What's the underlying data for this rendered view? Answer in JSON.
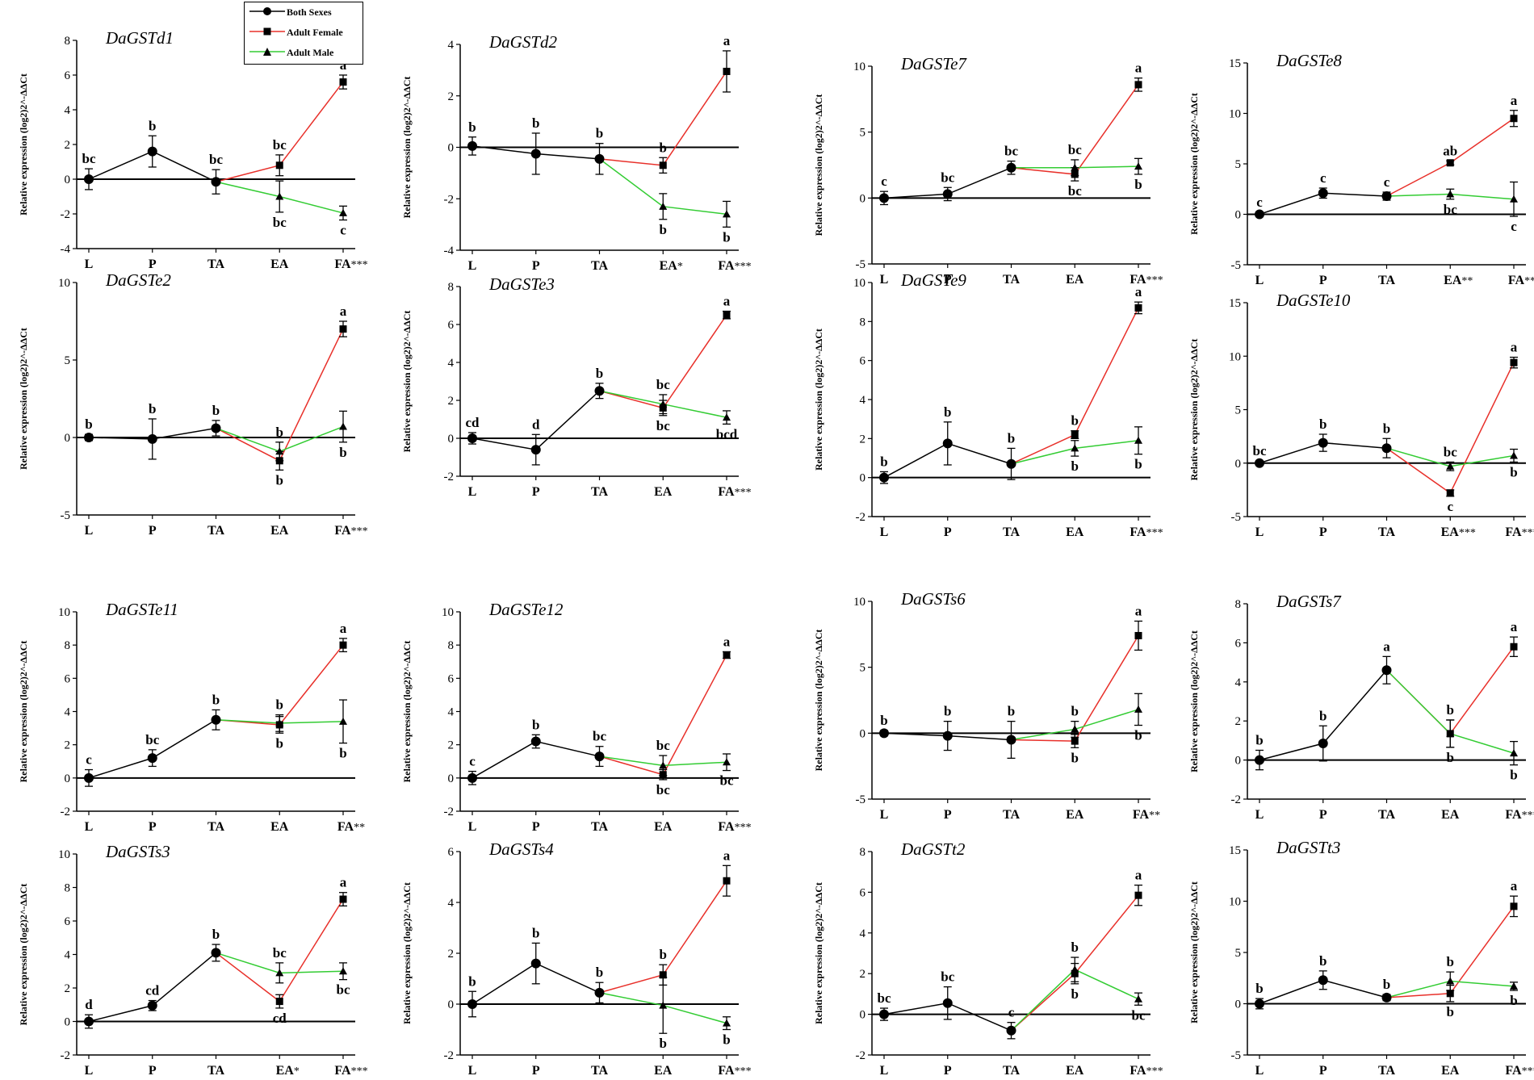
{
  "legend": {
    "items": [
      {
        "label": "Both Sexes",
        "color": "#000000",
        "marker": "circle"
      },
      {
        "label": "Adult Female",
        "color": "#e8302a",
        "marker": "square"
      },
      {
        "label": "Adult Male",
        "color": "#33cc33",
        "marker": "triangle"
      }
    ]
  },
  "colors": {
    "both": "#000000",
    "female": "#e8302a",
    "male": "#33cc33"
  },
  "chart_data": [
    {
      "type": "line",
      "title": "DaGSTd1",
      "ylabel": "Relative expression (log2)2^-ΔΔCt",
      "categories": [
        "L",
        "P",
        "TA",
        "EA",
        "FA"
      ],
      "marks": [
        "",
        "",
        "",
        "",
        "***"
      ],
      "ylim": [
        -4,
        8
      ],
      "yticks": [
        -4,
        -2,
        0,
        2,
        4,
        6,
        8
      ],
      "both": [
        0,
        1.6,
        -0.15
      ],
      "both_err": [
        0.6,
        0.9,
        0.7
      ],
      "female": [
        0.8,
        5.6
      ],
      "female_err": [
        0.6,
        0.4
      ],
      "male": [
        -1.0,
        -1.95
      ],
      "male_err": [
        0.9,
        0.4
      ],
      "letters": {
        "both": [
          "bc",
          "b",
          "bc"
        ],
        "female": [
          "bc",
          "a"
        ],
        "male": [
          "bc",
          "c"
        ]
      }
    },
    {
      "type": "line",
      "title": "DaGSTd2",
      "ylabel": "Relative expression (log2)2^-ΔΔCt",
      "categories": [
        "L",
        "P",
        "TA",
        "EA",
        "FA"
      ],
      "marks": [
        "",
        "",
        "",
        "*",
        "***"
      ],
      "ylim": [
        -4,
        4
      ],
      "yticks": [
        -4,
        -2,
        0,
        2,
        4
      ],
      "both": [
        0.05,
        -0.25,
        -0.45
      ],
      "both_err": [
        0.35,
        0.8,
        0.6
      ],
      "female": [
        -0.7,
        2.95
      ],
      "female_err": [
        0.3,
        0.8
      ],
      "male": [
        -2.3,
        -2.6
      ],
      "male_err": [
        0.5,
        0.5
      ],
      "letters": {
        "both": [
          "b",
          "b",
          "b"
        ],
        "female": [
          "b",
          "a"
        ],
        "male": [
          "b",
          "b"
        ]
      }
    },
    {
      "type": "line",
      "title": "DaGSTe7",
      "ylabel": "Relative expression (log2)2^-ΔΔCt",
      "categories": [
        "L",
        "P",
        "TA",
        "EA",
        "FA"
      ],
      "marks": [
        "",
        "",
        "",
        "",
        "***"
      ],
      "ylim": [
        -5,
        10
      ],
      "yticks": [
        -5,
        0,
        5,
        10
      ],
      "both": [
        0,
        0.3,
        2.3
      ],
      "both_err": [
        0.5,
        0.5,
        0.5
      ],
      "female": [
        1.8,
        8.6
      ],
      "female_err": [
        0.5,
        0.5
      ],
      "male": [
        2.3,
        2.4
      ],
      "male_err": [
        0.6,
        0.6
      ],
      "letters": {
        "both": [
          "c",
          "bc",
          "bc"
        ],
        "female": [
          "bc",
          "a"
        ],
        "male": [
          "bc",
          "b"
        ]
      }
    },
    {
      "type": "line",
      "title": "DaGSTe8",
      "ylabel": "Relative expression (log2)2^-ΔΔCt",
      "categories": [
        "L",
        "P",
        "TA",
        "EA",
        "FA"
      ],
      "marks": [
        "",
        "",
        "",
        "**",
        "**"
      ],
      "ylim": [
        -5,
        15
      ],
      "yticks": [
        -5,
        0,
        5,
        10,
        15
      ],
      "both": [
        0,
        2.1,
        1.8
      ],
      "both_err": [
        0.2,
        0.5,
        0.4
      ],
      "female": [
        5.1,
        9.5
      ],
      "female_err": [
        0.2,
        0.8
      ],
      "male": [
        2.0,
        1.5
      ],
      "male_err": [
        0.5,
        1.7
      ],
      "letters": {
        "both": [
          "c",
          "c",
          "c"
        ],
        "female": [
          "ab",
          "a"
        ],
        "male": [
          "bc",
          "c"
        ]
      }
    },
    {
      "type": "line",
      "title": "DaGSTe2",
      "ylabel": "Relative expression (log2)2^-ΔΔCt",
      "categories": [
        "L",
        "P",
        "TA",
        "EA",
        "FA"
      ],
      "marks": [
        "",
        "",
        "",
        "",
        "***"
      ],
      "ylim": [
        -5,
        10
      ],
      "yticks": [
        -5,
        0,
        5,
        10
      ],
      "both": [
        0,
        -0.1,
        0.6
      ],
      "both_err": [
        0.2,
        1.3,
        0.5
      ],
      "female": [
        -1.5,
        7.0
      ],
      "female_err": [
        0.6,
        0.5
      ],
      "male": [
        -0.9,
        0.7
      ],
      "male_err": [
        0.6,
        1.0
      ],
      "letters": {
        "both": [
          "b",
          "b",
          "b"
        ],
        "female": [
          "b",
          "a"
        ],
        "male": [
          "b",
          "b"
        ]
      }
    },
    {
      "type": "line",
      "title": "DaGSTe3",
      "ylabel": "Relative expression (log2)2^-ΔΔCt",
      "categories": [
        "L",
        "P",
        "TA",
        "EA",
        "FA"
      ],
      "marks": [
        "",
        "",
        "",
        "",
        "***"
      ],
      "ylim": [
        -2,
        8
      ],
      "yticks": [
        -2,
        0,
        2,
        4,
        6,
        8
      ],
      "both": [
        0,
        -0.6,
        2.5
      ],
      "both_err": [
        0.3,
        0.8,
        0.4
      ],
      "female": [
        1.6,
        6.5
      ],
      "female_err": [
        0.4,
        0.2
      ],
      "male": [
        1.8,
        1.1
      ],
      "male_err": [
        0.5,
        0.35
      ],
      "letters": {
        "both": [
          "cd",
          "d",
          "b"
        ],
        "female": [
          "bc",
          "a"
        ],
        "male": [
          "bc",
          "bcd"
        ]
      }
    },
    {
      "type": "line",
      "title": "DaGSTe9",
      "ylabel": "Relative expression (log2)2^-ΔΔCt",
      "categories": [
        "L",
        "P",
        "TA",
        "EA",
        "FA"
      ],
      "marks": [
        "",
        "",
        "",
        "",
        "***"
      ],
      "ylim": [
        -2,
        10
      ],
      "yticks": [
        -2,
        0,
        2,
        4,
        6,
        8,
        10
      ],
      "both": [
        0,
        1.75,
        0.7
      ],
      "both_err": [
        0.3,
        1.1,
        0.8
      ],
      "female": [
        2.2,
        8.7
      ],
      "female_err": [
        0.2,
        0.3
      ],
      "male": [
        1.5,
        1.9
      ],
      "male_err": [
        0.4,
        0.7
      ],
      "letters": {
        "both": [
          "b",
          "b",
          "b"
        ],
        "female": [
          "b",
          "a"
        ],
        "male": [
          "b",
          "b"
        ]
      }
    },
    {
      "type": "line",
      "title": "DaGSTe10",
      "ylabel": "Relative expression (log2)2^-ΔΔCt",
      "categories": [
        "L",
        "P",
        "TA",
        "EA",
        "FA"
      ],
      "marks": [
        "",
        "",
        "",
        "***",
        "***"
      ],
      "ylim": [
        -5,
        15
      ],
      "yticks": [
        -5,
        0,
        5,
        10,
        15
      ],
      "both": [
        0,
        1.9,
        1.4
      ],
      "both_err": [
        0.2,
        0.8,
        0.9
      ],
      "female": [
        -2.8,
        9.4
      ],
      "female_err": [
        0.3,
        0.5
      ],
      "male": [
        -0.3,
        0.7
      ],
      "male_err": [
        0.4,
        0.6
      ],
      "letters": {
        "both": [
          "bc",
          "b",
          "b"
        ],
        "female": [
          "c",
          "a"
        ],
        "male": [
          "bc",
          "b"
        ]
      }
    },
    {
      "type": "line",
      "title": "DaGSTe11",
      "ylabel": "Relative expression (log2)2^-ΔΔCt",
      "categories": [
        "L",
        "P",
        "TA",
        "EA",
        "FA"
      ],
      "marks": [
        "",
        "",
        "",
        "",
        "**"
      ],
      "ylim": [
        -2,
        10
      ],
      "yticks": [
        -2,
        0,
        2,
        4,
        6,
        8,
        10
      ],
      "both": [
        0,
        1.2,
        3.5
      ],
      "both_err": [
        0.5,
        0.5,
        0.6
      ],
      "female": [
        3.2,
        8.0
      ],
      "female_err": [
        0.5,
        0.4
      ],
      "male": [
        3.3,
        3.4
      ],
      "male_err": [
        0.5,
        1.3
      ],
      "letters": {
        "both": [
          "c",
          "bc",
          "b"
        ],
        "female": [
          "b",
          "a"
        ],
        "male": [
          "b",
          "b"
        ]
      }
    },
    {
      "type": "line",
      "title": "DaGSTe12",
      "ylabel": "Relative expression (log2)2^-ΔΔCt",
      "categories": [
        "L",
        "P",
        "TA",
        "EA",
        "FA"
      ],
      "marks": [
        "",
        "",
        "",
        "",
        "***"
      ],
      "ylim": [
        -2,
        10
      ],
      "yticks": [
        -2,
        0,
        2,
        4,
        6,
        8,
        10
      ],
      "both": [
        0,
        2.2,
        1.3
      ],
      "both_err": [
        0.4,
        0.4,
        0.6
      ],
      "female": [
        0.2,
        7.4
      ],
      "female_err": [
        0.3,
        0.2
      ],
      "male": [
        0.75,
        0.95
      ],
      "male_err": [
        0.6,
        0.5
      ],
      "letters": {
        "both": [
          "c",
          "b",
          "bc"
        ],
        "female": [
          "bc",
          "a"
        ],
        "male": [
          "bc",
          "bc"
        ]
      }
    },
    {
      "type": "line",
      "title": "DaGSTs6",
      "ylabel": "Relative expression (log2)2^-ΔΔCt",
      "categories": [
        "L",
        "P",
        "TA",
        "EA",
        "FA"
      ],
      "marks": [
        "",
        "",
        "",
        "",
        "**"
      ],
      "ylim": [
        -5,
        10
      ],
      "yticks": [
        -5,
        0,
        5,
        10
      ],
      "both": [
        0,
        -0.2,
        -0.5
      ],
      "both_err": [
        0.2,
        1.1,
        1.4
      ],
      "female": [
        -0.6,
        7.4
      ],
      "female_err": [
        0.5,
        1.1
      ],
      "male": [
        0.3,
        1.8
      ],
      "male_err": [
        0.6,
        1.2
      ],
      "letters": {
        "both": [
          "b",
          "b",
          "b"
        ],
        "female": [
          "b",
          "a"
        ],
        "male": [
          "b",
          "b"
        ]
      }
    },
    {
      "type": "line",
      "title": "DaGSTs7",
      "ylabel": "Relative expression (log2)2^-ΔΔCt",
      "categories": [
        "L",
        "P",
        "TA",
        "EA",
        "FA"
      ],
      "marks": [
        "",
        "",
        "",
        "",
        "***"
      ],
      "ylim": [
        -2,
        8
      ],
      "yticks": [
        -2,
        0,
        2,
        4,
        6,
        8
      ],
      "both": [
        0,
        0.85,
        4.6
      ],
      "both_err": [
        0.5,
        0.9,
        0.7
      ],
      "female": [
        1.35,
        5.8
      ],
      "female_err": [
        0.7,
        0.5
      ],
      "male": [
        1.35,
        0.35
      ],
      "male_err": [
        0.7,
        0.6
      ],
      "letters": {
        "both": [
          "b",
          "b",
          "a"
        ],
        "female": [
          "b",
          "a"
        ],
        "male": [
          "b",
          "b"
        ]
      }
    },
    {
      "type": "line",
      "title": "DaGSTs3",
      "ylabel": "Relative expression (log2)2^-ΔΔCt",
      "categories": [
        "L",
        "P",
        "TA",
        "EA",
        "FA"
      ],
      "marks": [
        "",
        "",
        "",
        "*",
        "***"
      ],
      "ylim": [
        -2,
        10
      ],
      "yticks": [
        -2,
        0,
        2,
        4,
        6,
        8,
        10
      ],
      "both": [
        0,
        0.95,
        4.1
      ],
      "both_err": [
        0.4,
        0.3,
        0.5
      ],
      "female": [
        1.2,
        7.3
      ],
      "female_err": [
        0.4,
        0.4
      ],
      "male": [
        2.9,
        3.0
      ],
      "male_err": [
        0.6,
        0.5
      ],
      "letters": {
        "both": [
          "d",
          "cd",
          "b"
        ],
        "female": [
          "cd",
          "a"
        ],
        "male": [
          "bc",
          "bc"
        ]
      }
    },
    {
      "type": "line",
      "title": "DaGSTs4",
      "ylabel": "Relative expression (log2)2^-ΔΔCt",
      "categories": [
        "L",
        "P",
        "TA",
        "EA",
        "FA"
      ],
      "marks": [
        "",
        "",
        "",
        "",
        "***"
      ],
      "ylim": [
        -2,
        6
      ],
      "yticks": [
        -2,
        0,
        2,
        4,
        6
      ],
      "both": [
        0,
        1.6,
        0.45
      ],
      "both_err": [
        0.5,
        0.8,
        0.4
      ],
      "female": [
        1.15,
        4.85
      ],
      "female_err": [
        0.4,
        0.6
      ],
      "male": [
        -0.05,
        -0.75
      ],
      "male_err": [
        1.1,
        0.25
      ],
      "letters": {
        "both": [
          "b",
          "b",
          "b"
        ],
        "female": [
          "b",
          "a"
        ],
        "male": [
          "b",
          "b"
        ]
      }
    },
    {
      "type": "line",
      "title": "DaGSTt2",
      "ylabel": "Relative expression (log2)2^-ΔΔCt",
      "categories": [
        "L",
        "P",
        "TA",
        "EA",
        "FA"
      ],
      "marks": [
        "",
        "",
        "",
        "",
        "***"
      ],
      "ylim": [
        -2,
        8
      ],
      "yticks": [
        -2,
        0,
        2,
        4,
        6,
        8
      ],
      "both": [
        0,
        0.55,
        -0.8
      ],
      "both_err": [
        0.3,
        0.8,
        0.4
      ],
      "female": [
        2.0,
        5.85
      ],
      "female_err": [
        0.5,
        0.5
      ],
      "male": [
        2.2,
        0.75
      ],
      "male_err": [
        0.6,
        0.3
      ],
      "letters": {
        "both": [
          "bc",
          "bc",
          "c"
        ],
        "female": [
          "b",
          "a"
        ],
        "male": [
          "b",
          "bc"
        ]
      }
    },
    {
      "type": "line",
      "title": "DaGSTt3",
      "ylabel": "Relative expression (log2)2^-ΔΔCt",
      "categories": [
        "L",
        "P",
        "TA",
        "EA",
        "FA"
      ],
      "marks": [
        "",
        "",
        "",
        "",
        "***"
      ],
      "ylim": [
        -5,
        15
      ],
      "yticks": [
        -5,
        0,
        5,
        10,
        15
      ],
      "both": [
        0,
        2.3,
        0.6
      ],
      "both_err": [
        0.5,
        0.9,
        0.3
      ],
      "female": [
        1.0,
        9.5
      ],
      "female_err": [
        0.8,
        1.0
      ],
      "male": [
        2.2,
        1.7
      ],
      "male_err": [
        0.9,
        0.4
      ],
      "letters": {
        "both": [
          "b",
          "b",
          "b"
        ],
        "female": [
          "b",
          "a"
        ],
        "male": [
          "b",
          "b"
        ]
      }
    }
  ]
}
